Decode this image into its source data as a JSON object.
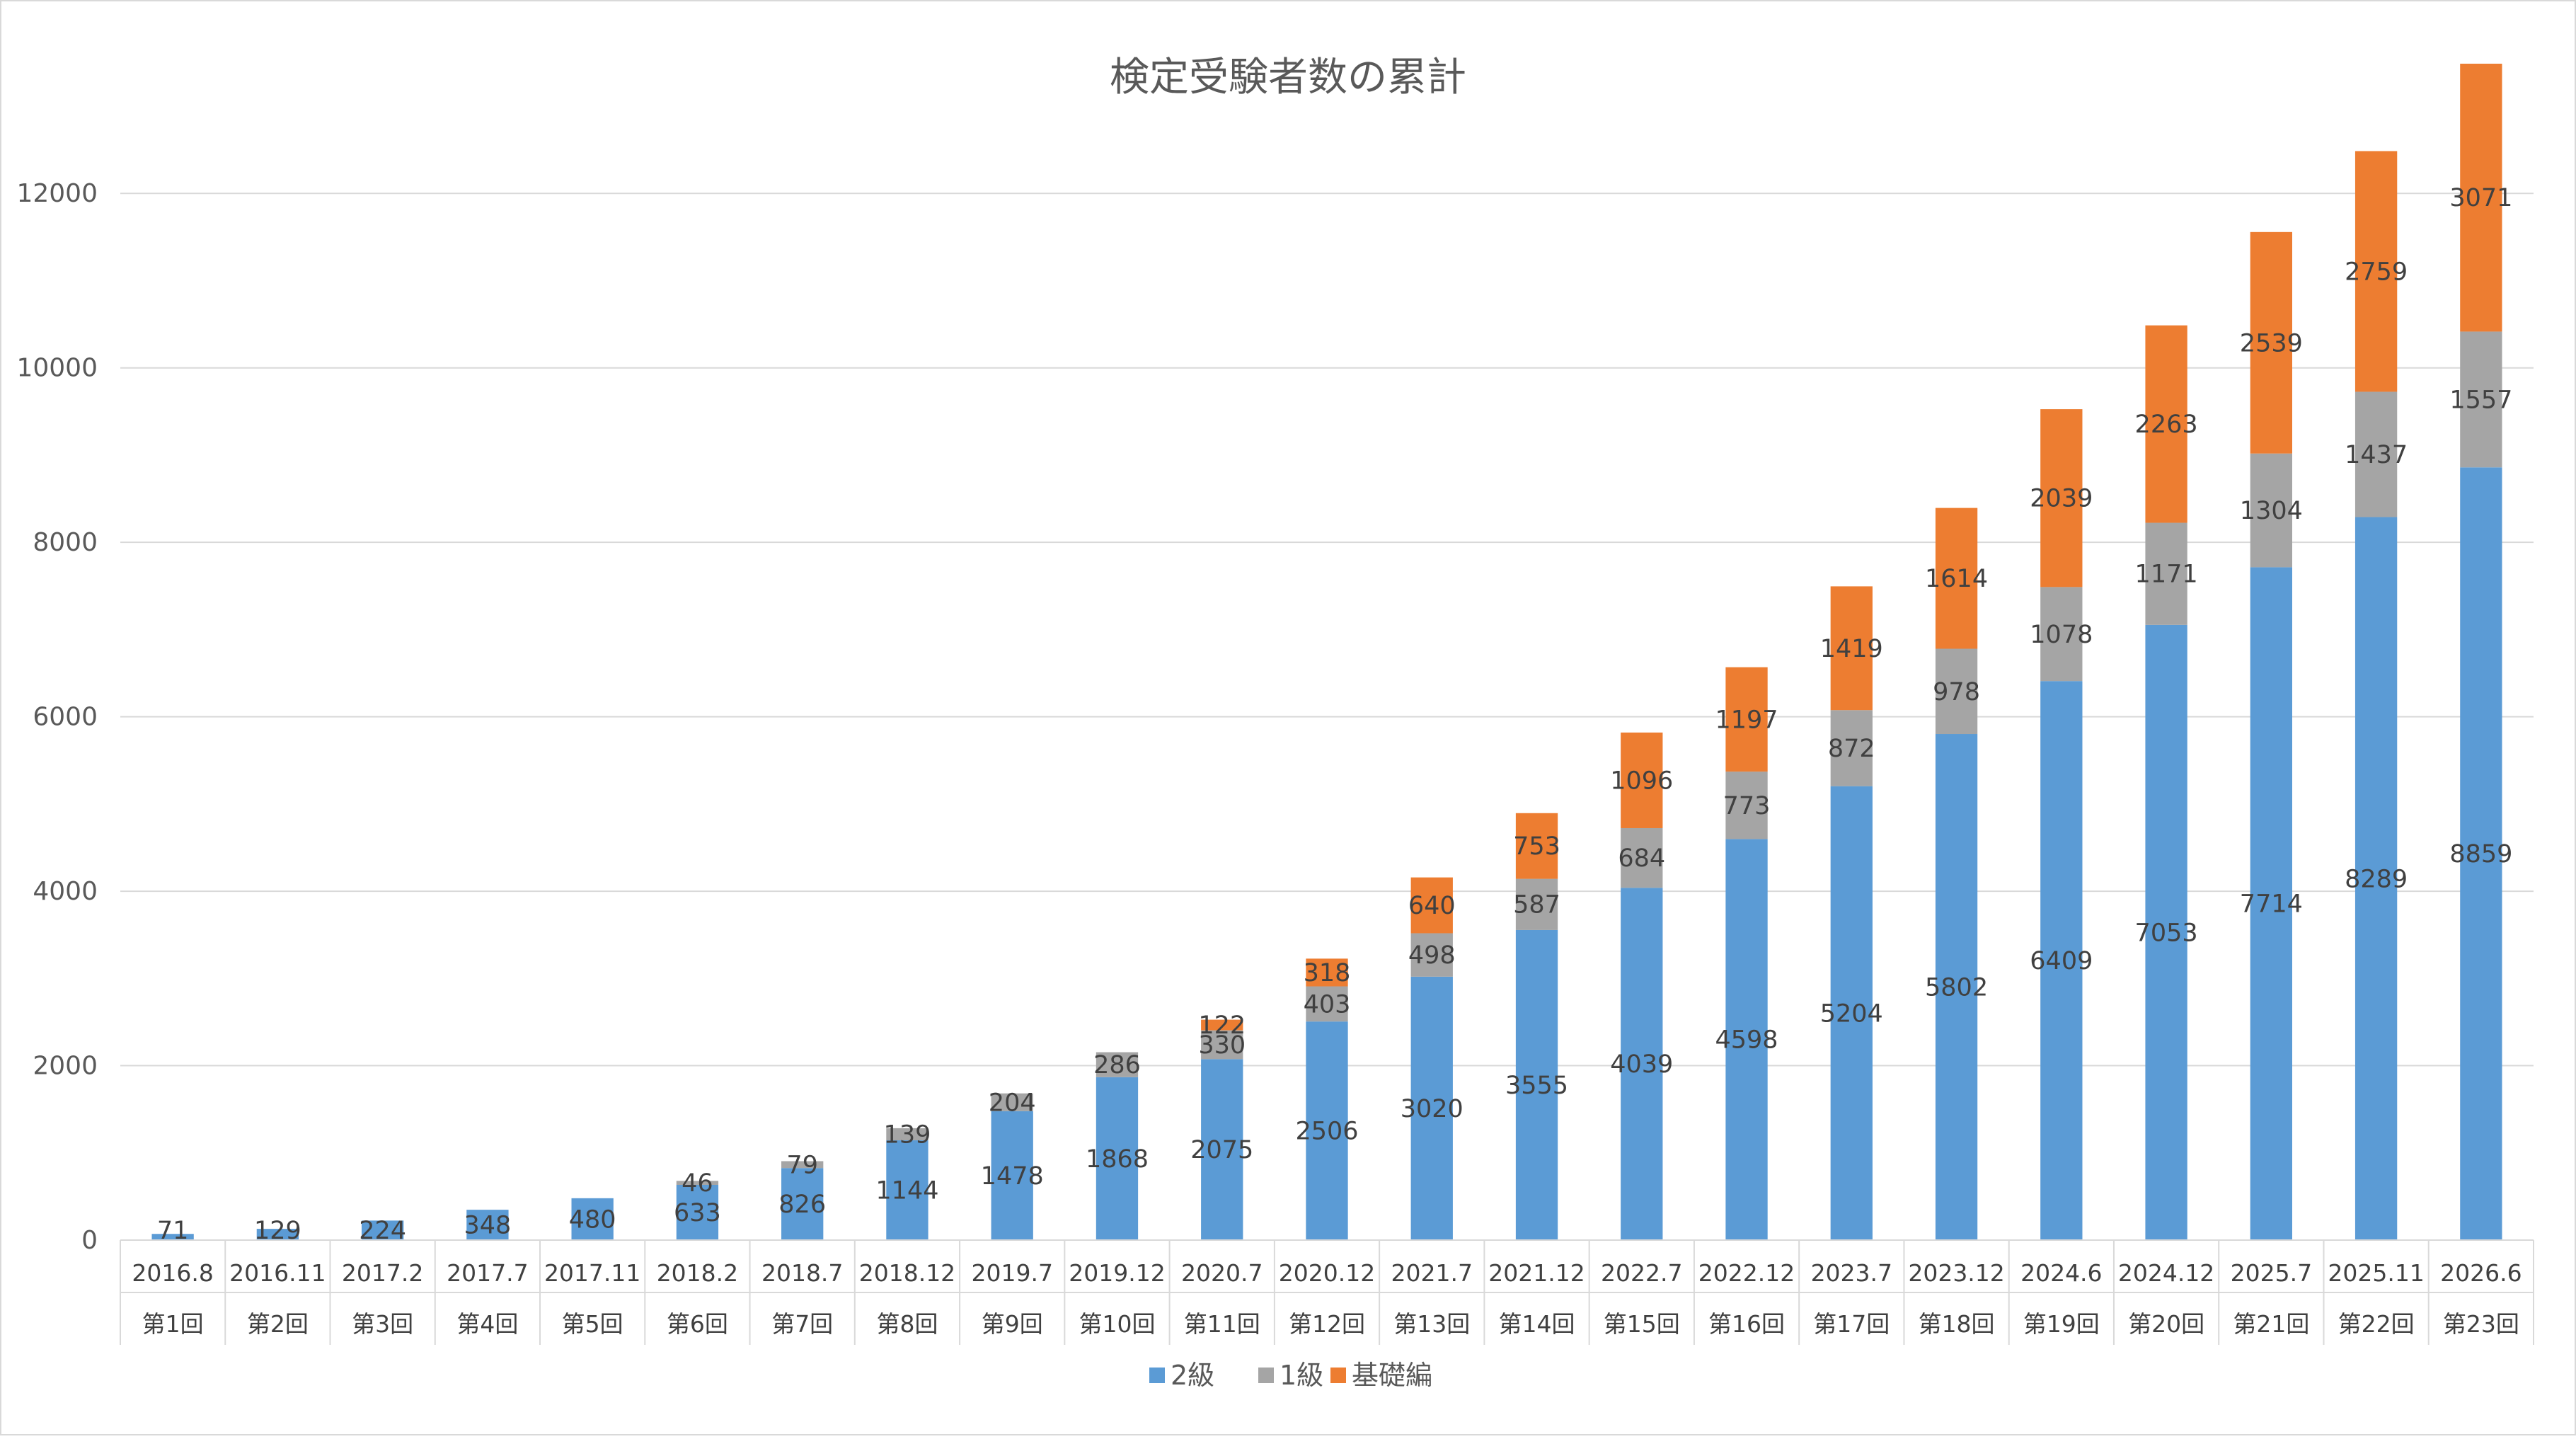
{
  "chart_data": {
    "type": "bar",
    "stacked": true,
    "title": "検定受験者数の累計",
    "xlabel": "",
    "ylabel": "",
    "ylim": [
      0,
      13000
    ],
    "yticks": [
      0,
      2000,
      4000,
      6000,
      8000,
      10000,
      12000
    ],
    "grid": true,
    "legend_position": "bottom",
    "categories": [
      {
        "date": "2016.8",
        "round": "第1回"
      },
      {
        "date": "2016.11",
        "round": "第2回"
      },
      {
        "date": "2017.2",
        "round": "第3回"
      },
      {
        "date": "2017.7",
        "round": "第4回"
      },
      {
        "date": "2017.11",
        "round": "第5回"
      },
      {
        "date": "2018.2",
        "round": "第6回"
      },
      {
        "date": "2018.7",
        "round": "第7回"
      },
      {
        "date": "2018.12",
        "round": "第8回"
      },
      {
        "date": "2019.7",
        "round": "第9回"
      },
      {
        "date": "2019.12",
        "round": "第10回"
      },
      {
        "date": "2020.7",
        "round": "第11回"
      },
      {
        "date": "2020.12",
        "round": "第12回"
      },
      {
        "date": "2021.7",
        "round": "第13回"
      },
      {
        "date": "2021.12",
        "round": "第14回"
      },
      {
        "date": "2022.7",
        "round": "第15回"
      },
      {
        "date": "2022.12",
        "round": "第16回"
      },
      {
        "date": "2023.7",
        "round": "第17回"
      },
      {
        "date": "2023.12",
        "round": "第18回"
      },
      {
        "date": "2024.6",
        "round": "第19回"
      },
      {
        "date": "2024.12",
        "round": "第20回"
      },
      {
        "date": "2025.7",
        "round": "第21回"
      },
      {
        "date": "2025.11",
        "round": "第22回"
      },
      {
        "date": "2026.6",
        "round": "第23回"
      }
    ],
    "series": [
      {
        "name": "2級",
        "color": "#5B9BD5",
        "values": [
          71,
          129,
          224,
          348,
          480,
          633,
          826,
          1144,
          1478,
          1868,
          2075,
          2506,
          3020,
          3555,
          4039,
          4598,
          5204,
          5802,
          6409,
          7053,
          7714,
          8289,
          8859
        ]
      },
      {
        "name": "1級",
        "color": "#A5A5A5",
        "values": [
          null,
          null,
          null,
          null,
          null,
          46,
          79,
          139,
          204,
          286,
          330,
          403,
          498,
          587,
          684,
          773,
          872,
          978,
          1078,
          1171,
          1304,
          1437,
          1557
        ]
      },
      {
        "name": "基礎編",
        "color": "#ED7D31",
        "values": [
          null,
          null,
          null,
          null,
          null,
          null,
          null,
          null,
          null,
          null,
          122,
          318,
          640,
          753,
          1096,
          1197,
          1419,
          1614,
          2039,
          2263,
          2539,
          2759,
          3071
        ]
      }
    ]
  }
}
